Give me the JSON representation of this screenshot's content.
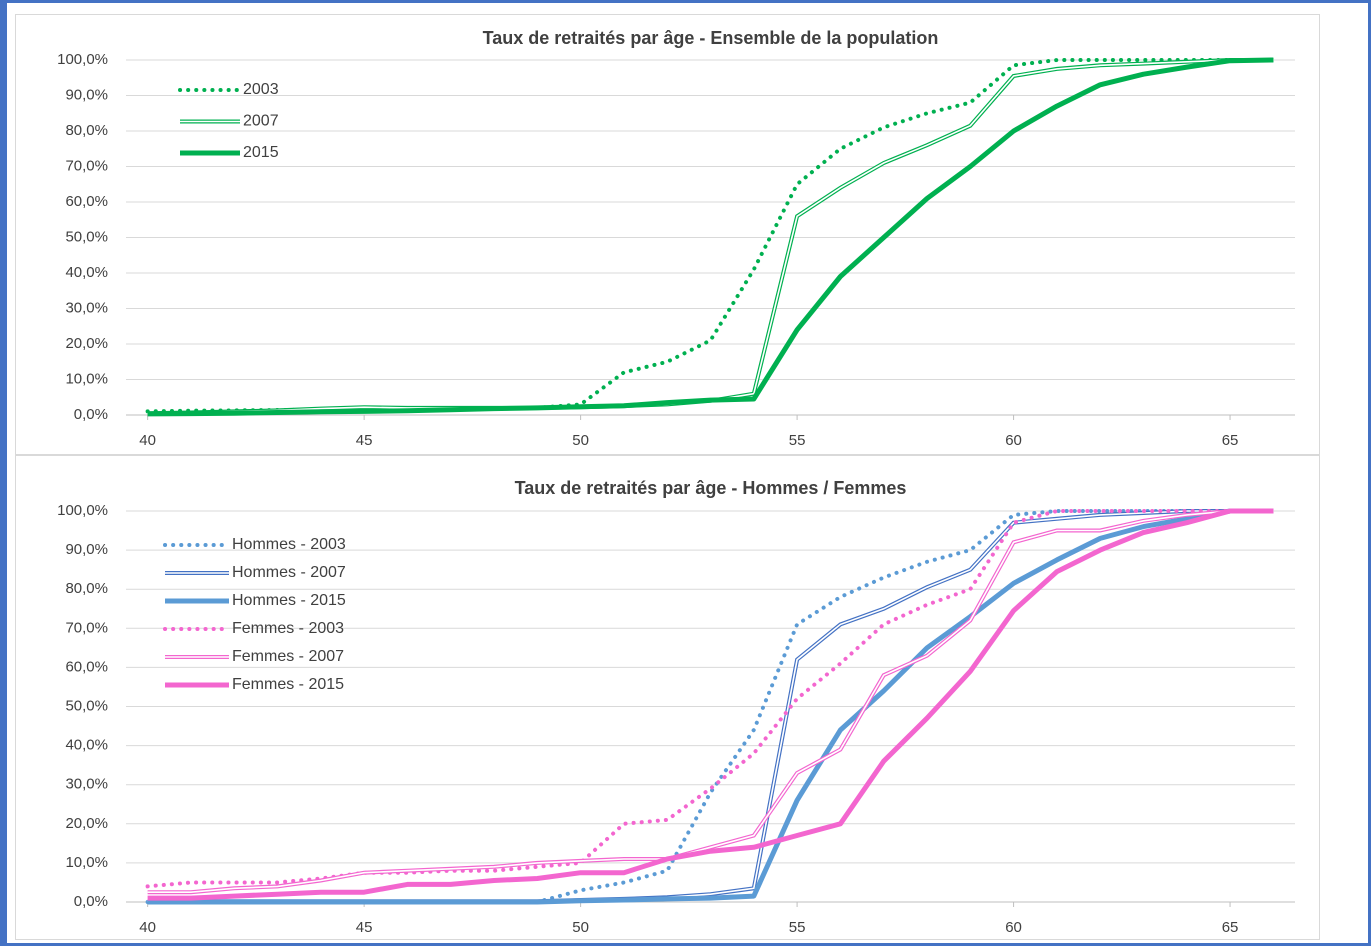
{
  "chart_data": [
    {
      "type": "line",
      "title": "Taux de retraités par âge - Ensemble de la population",
      "x": [
        40,
        41,
        42,
        43,
        44,
        45,
        46,
        47,
        48,
        49,
        50,
        51,
        52,
        53,
        54,
        55,
        56,
        57,
        58,
        59,
        60,
        61,
        62,
        63,
        64,
        65,
        66
      ],
      "xlim": [
        39.5,
        66.5
      ],
      "xticks": [
        40,
        45,
        50,
        55,
        60,
        65
      ],
      "ylim": [
        0,
        100
      ],
      "yticks": [
        {
          "value": 0,
          "label": "0,0%"
        },
        {
          "value": 10,
          "label": "10,0%"
        },
        {
          "value": 20,
          "label": "20,0%"
        },
        {
          "value": 30,
          "label": "30,0%"
        },
        {
          "value": 40,
          "label": "40,0%"
        },
        {
          "value": 50,
          "label": "50,0%"
        },
        {
          "value": 60,
          "label": "60,0%"
        },
        {
          "value": 70,
          "label": "70,0%"
        },
        {
          "value": 80,
          "label": "80,0%"
        },
        {
          "value": 90,
          "label": "90,0%"
        },
        {
          "value": 100,
          "label": "100,0%"
        }
      ],
      "grid": true,
      "legend": "upper left",
      "series": [
        {
          "name": "2003",
          "color": "#00b050",
          "style": "dotted",
          "values": [
            1,
            1.2,
            1.3,
            1.4,
            1.5,
            1.6,
            1.6,
            1.7,
            1.8,
            2,
            3,
            12,
            15,
            21,
            41,
            65,
            75,
            81,
            85,
            88,
            98.5,
            100,
            100,
            100,
            100,
            100,
            100
          ]
        },
        {
          "name": "2007",
          "color": "#00b050",
          "style": "double",
          "values": [
            0.5,
            0.7,
            1,
            1.3,
            1.8,
            2.2,
            2,
            2,
            2,
            2,
            2.2,
            2.5,
            3,
            4,
            6,
            56,
            64,
            71,
            76,
            81.5,
            95.5,
            97.5,
            98.5,
            99,
            99.5,
            100,
            100
          ]
        },
        {
          "name": "2015",
          "color": "#00b050",
          "style": "solid",
          "values": [
            0.3,
            0.4,
            0.5,
            0.7,
            0.9,
            1,
            1.2,
            1.5,
            1.8,
            2,
            2.3,
            2.6,
            3.5,
            4.2,
            4.5,
            24,
            39,
            50,
            61,
            70,
            80,
            87,
            93,
            96,
            98,
            99.8,
            100
          ]
        }
      ]
    },
    {
      "type": "line",
      "title": "Taux de retraités par âge - Hommes / Femmes",
      "x": [
        40,
        41,
        42,
        43,
        44,
        45,
        46,
        47,
        48,
        49,
        50,
        51,
        52,
        53,
        54,
        55,
        56,
        57,
        58,
        59,
        60,
        61,
        62,
        63,
        64,
        65,
        66
      ],
      "xlim": [
        39.5,
        66.5
      ],
      "xticks": [
        40,
        45,
        50,
        55,
        60,
        65
      ],
      "ylim": [
        0,
        100
      ],
      "yticks": [
        {
          "value": 0,
          "label": "0,0%"
        },
        {
          "value": 10,
          "label": "10,0%"
        },
        {
          "value": 20,
          "label": "20,0%"
        },
        {
          "value": 30,
          "label": "30,0%"
        },
        {
          "value": 40,
          "label": "40,0%"
        },
        {
          "value": 50,
          "label": "50,0%"
        },
        {
          "value": 60,
          "label": "60,0%"
        },
        {
          "value": 70,
          "label": "70,0%"
        },
        {
          "value": 80,
          "label": "80,0%"
        },
        {
          "value": 90,
          "label": "90,0%"
        },
        {
          "value": 100,
          "label": "100,0%"
        }
      ],
      "grid": true,
      "legend": "upper left",
      "series": [
        {
          "name": "Hommes - 2003",
          "color": "#5b9bd5",
          "style": "dotted",
          "values": [
            0,
            0,
            0,
            0,
            0,
            0,
            0,
            0,
            0,
            0,
            3,
            5,
            8,
            28,
            44,
            71,
            78,
            83,
            87,
            90,
            99,
            100,
            100,
            100,
            100,
            100,
            100
          ]
        },
        {
          "name": "Hommes - 2007",
          "color": "#4472c4",
          "style": "double",
          "values": [
            0.2,
            0.2,
            0.2,
            0.2,
            0.2,
            0.2,
            0.2,
            0.2,
            0.2,
            0.2,
            0.5,
            0.8,
            1.2,
            2,
            3.5,
            62,
            71,
            75,
            80.5,
            85,
            97,
            98,
            99,
            99.5,
            100,
            100,
            100
          ]
        },
        {
          "name": "Hommes - 2015",
          "color": "#5b9bd5",
          "style": "solid",
          "values": [
            0,
            0,
            0,
            0,
            0,
            0,
            0,
            0,
            0,
            0,
            0.3,
            0.5,
            0.8,
            1,
            1.5,
            26,
            44,
            54,
            65,
            73,
            81.5,
            87.5,
            93,
            96,
            98,
            100,
            100
          ]
        },
        {
          "name": "Femmes - 2003",
          "color": "#f366cf",
          "style": "dotted",
          "values": [
            4,
            5,
            5,
            5,
            6,
            7.5,
            7.5,
            8,
            8,
            9,
            10,
            20,
            21,
            29,
            38,
            52,
            61,
            71,
            76,
            80,
            97,
            100,
            100,
            100,
            100,
            100,
            100
          ]
        },
        {
          "name": "Femmes - 2007",
          "color": "#f366cf",
          "style": "double",
          "values": [
            2.5,
            2.5,
            3.5,
            4,
            5.5,
            7.5,
            8,
            8.5,
            9,
            10,
            10.5,
            11,
            11,
            14,
            17,
            33,
            39,
            58,
            63,
            72,
            92,
            95,
            95,
            97.5,
            99,
            100,
            100
          ]
        },
        {
          "name": "Femmes - 2015",
          "color": "#f366cf",
          "style": "solid",
          "values": [
            1,
            1,
            1.5,
            2,
            2.5,
            2.5,
            4.5,
            4.5,
            5.5,
            6,
            7.5,
            7.5,
            11,
            13,
            14,
            17,
            20,
            36,
            47,
            59,
            74.5,
            84.5,
            90,
            94.5,
            97,
            100,
            100
          ]
        }
      ]
    }
  ]
}
